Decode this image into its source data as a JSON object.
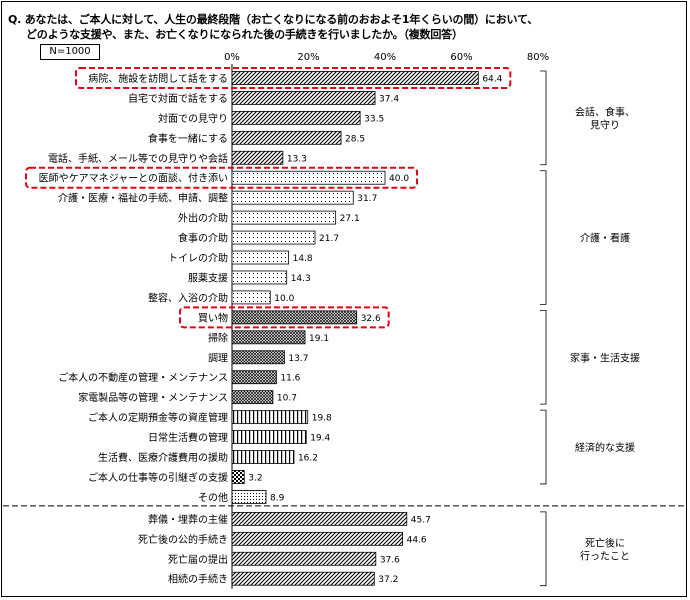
{
  "question_line1": "Q. あなたは、ご本人に対して、人生の最終段階（お亡くなりになる前のおおよそ1年くらいの間）において、",
  "question_line2": "どのような支援や、また、お亡くなりになられた後の手続きを行いましたか。（複数回答）",
  "n_label": "N=1000",
  "chart_data": {
    "type": "bar",
    "orientation": "horizontal",
    "xlim": [
      0,
      80
    ],
    "x_ticks": [
      "0%",
      "20%",
      "40%",
      "60%",
      "80%"
    ],
    "grid": false,
    "categories": [
      {
        "label": "病院、施設を訪問して話をする",
        "value": 64.4,
        "value_label": "64.4",
        "highlight": true,
        "pattern": "diag"
      },
      {
        "label": "自宅で対面で話をする",
        "value": 37.4,
        "value_label": "37.4",
        "highlight": false,
        "pattern": "diag"
      },
      {
        "label": "対面での見守り",
        "value": 33.5,
        "value_label": "33.5",
        "highlight": false,
        "pattern": "diag"
      },
      {
        "label": "食事を一緒にする",
        "value": 28.5,
        "value_label": "28.5",
        "highlight": false,
        "pattern": "diag"
      },
      {
        "label": "電話、手紙、メール等での見守りや会話",
        "value": 13.3,
        "value_label": "13.3",
        "highlight": false,
        "pattern": "diag"
      },
      {
        "label": "医師やケアマネジャーとの面談、付き添い",
        "value": 40.0,
        "value_label": "40.0",
        "highlight": true,
        "pattern": "dots"
      },
      {
        "label": "介護・医療・福祉の手続、申請、調整",
        "value": 31.7,
        "value_label": "31.7",
        "highlight": false,
        "pattern": "dots"
      },
      {
        "label": "外出の介助",
        "value": 27.1,
        "value_label": "27.1",
        "highlight": false,
        "pattern": "dots"
      },
      {
        "label": "食事の介助",
        "value": 21.7,
        "value_label": "21.7",
        "highlight": false,
        "pattern": "dots"
      },
      {
        "label": "トイレの介助",
        "value": 14.8,
        "value_label": "14.8",
        "highlight": false,
        "pattern": "dots"
      },
      {
        "label": "服薬支援",
        "value": 14.3,
        "value_label": "14.3",
        "highlight": false,
        "pattern": "dots"
      },
      {
        "label": "整容、入浴の介助",
        "value": 10.0,
        "value_label": "10.0",
        "highlight": false,
        "pattern": "dots"
      },
      {
        "label": "買い物",
        "value": 32.6,
        "value_label": "32.6",
        "highlight": true,
        "pattern": "cross"
      },
      {
        "label": "掃除",
        "value": 19.1,
        "value_label": "19.1",
        "highlight": false,
        "pattern": "cross"
      },
      {
        "label": "調理",
        "value": 13.7,
        "value_label": "13.7",
        "highlight": false,
        "pattern": "cross"
      },
      {
        "label": "ご本人の不動産の管理・メンテナンス",
        "value": 11.6,
        "value_label": "11.6",
        "highlight": false,
        "pattern": "cross"
      },
      {
        "label": "家電製品等の管理・メンテナンス",
        "value": 10.7,
        "value_label": "10.7",
        "highlight": false,
        "pattern": "cross"
      },
      {
        "label": "ご本人の定期預金等の資産管理",
        "value": 19.8,
        "value_label": "19.8",
        "highlight": false,
        "pattern": "vert"
      },
      {
        "label": "日常生活費の管理",
        "value": 19.4,
        "value_label": "19.4",
        "highlight": false,
        "pattern": "vert"
      },
      {
        "label": "生活費、医療介護費用の援助",
        "value": 16.2,
        "value_label": "16.2",
        "highlight": false,
        "pattern": "vert"
      },
      {
        "label": "ご本人の仕事等の引継ぎの支援",
        "value": 3.2,
        "value_label": "3.2",
        "highlight": false,
        "pattern": "check"
      },
      {
        "label": "その他",
        "value": 8.9,
        "value_label": "8.9",
        "highlight": false,
        "pattern": "dotsdense"
      },
      {
        "label": "葬儀・埋葬の主催",
        "value": 45.7,
        "value_label": "45.7",
        "highlight": false,
        "pattern": "diag"
      },
      {
        "label": "死亡後の公的手続き",
        "value": 44.6,
        "value_label": "44.6",
        "highlight": false,
        "pattern": "diag"
      },
      {
        "label": "死亡届の提出",
        "value": 37.6,
        "value_label": "37.6",
        "highlight": false,
        "pattern": "diag"
      },
      {
        "label": "相続の手続き",
        "value": 37.2,
        "value_label": "37.2",
        "highlight": false,
        "pattern": "diag"
      }
    ],
    "groups": [
      {
        "lines": [
          "会話、食事、",
          "見守り"
        ],
        "from": 0,
        "to": 4
      },
      {
        "lines": [
          "介護・看護"
        ],
        "from": 5,
        "to": 11
      },
      {
        "lines": [
          "家事・生活支援"
        ],
        "from": 12,
        "to": 16
      },
      {
        "lines": [
          "経済的な支援"
        ],
        "from": 17,
        "to": 20
      },
      {
        "lines": [
          "死亡後に",
          "行ったこと"
        ],
        "from": 22,
        "to": 25
      }
    ]
  }
}
